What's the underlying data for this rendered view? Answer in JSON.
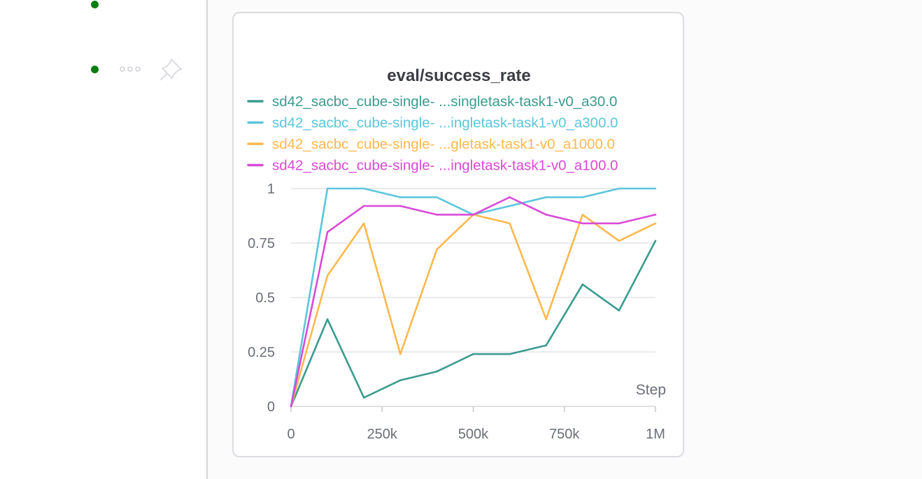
{
  "sidebar": {
    "run_status_color": "#0a7d14",
    "more_icon": "more-dots-icon",
    "pin_icon": "pin-icon"
  },
  "chart_data": {
    "type": "line",
    "title": "eval/success_rate",
    "xlabel": "Step",
    "ylabel": "",
    "xlim": [
      0,
      1000000
    ],
    "ylim": [
      0,
      1
    ],
    "x_ticks": [
      "0",
      "250k",
      "500k",
      "750k",
      "1M"
    ],
    "x_tick_values": [
      0,
      250000,
      500000,
      750000,
      1000000
    ],
    "y_ticks": [
      "0",
      "0.25",
      "0.5",
      "0.75",
      "1"
    ],
    "y_tick_values": [
      0,
      0.25,
      0.5,
      0.75,
      1
    ],
    "grid": true,
    "legend_position": "top",
    "x": [
      0,
      100000,
      200000,
      300000,
      400000,
      500000,
      600000,
      700000,
      800000,
      900000,
      1000000
    ],
    "series": [
      {
        "name_prefix": "sd42_sacbc_cube-single-",
        "name_suffix": "...singletask-task1-v0_a30.0",
        "color": "#3a9b8f",
        "values": [
          0,
          0.4,
          0.04,
          0.12,
          0.16,
          0.24,
          0.24,
          0.28,
          0.56,
          0.44,
          0.76
        ]
      },
      {
        "name_prefix": "sd42_sacbc_cube-single-",
        "name_suffix": "...ingletask-task1-v0_a300.0",
        "color": "#5bc6dc",
        "values": [
          0,
          1.0,
          1.0,
          0.96,
          0.96,
          0.88,
          0.92,
          0.96,
          0.96,
          1.0,
          1.0
        ]
      },
      {
        "name_prefix": "sd42_sacbc_cube-single-",
        "name_suffix": "...gletask-task1-v0_a1000.0",
        "color": "#ffb84d",
        "values": [
          0,
          0.6,
          0.84,
          0.24,
          0.72,
          0.88,
          0.84,
          0.4,
          0.88,
          0.76,
          0.84
        ]
      },
      {
        "name_prefix": "sd42_sacbc_cube-single-",
        "name_suffix": "...ingletask-task1-v0_a100.0",
        "color": "#d94ad8",
        "values": [
          0,
          0.8,
          0.92,
          0.92,
          0.88,
          0.88,
          0.96,
          0.88,
          0.84,
          0.84,
          0.88
        ]
      }
    ]
  }
}
